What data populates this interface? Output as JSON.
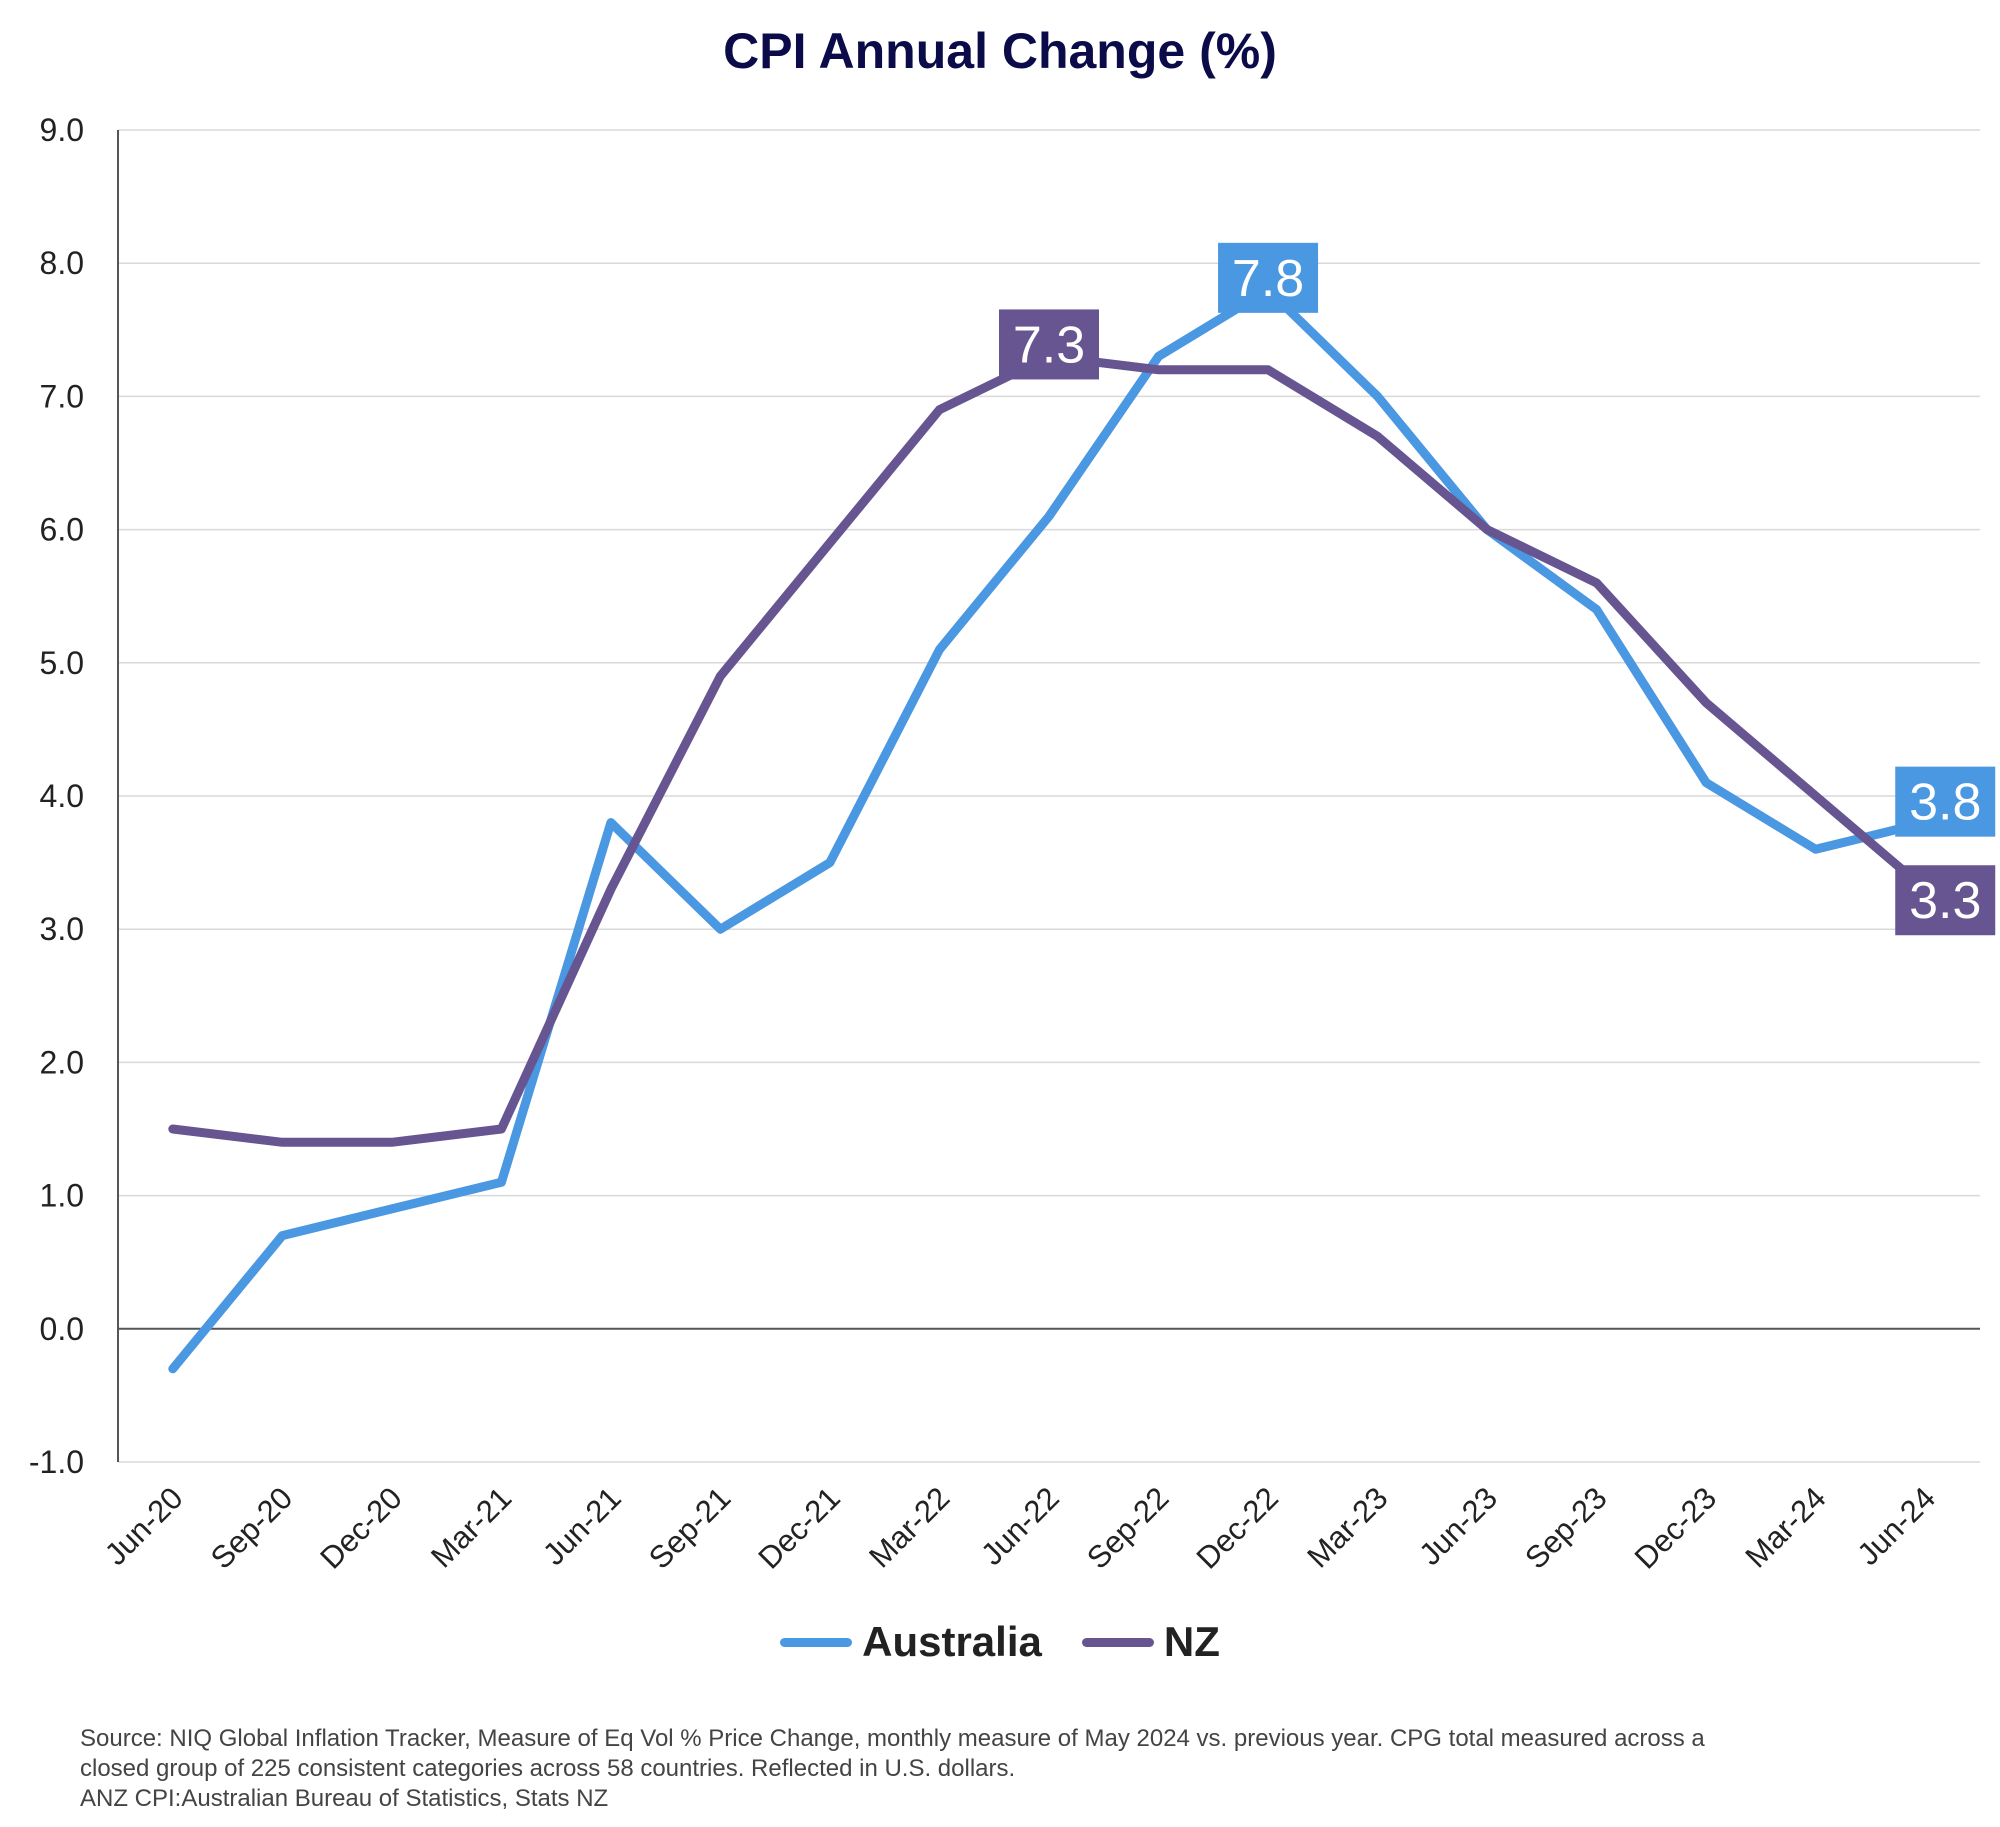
{
  "chart_data": {
    "type": "line",
    "title": "CPI Annual Change (%)",
    "xlabel": "",
    "ylabel": "",
    "categories": [
      "Jun-20",
      "Sep-20",
      "Dec-20",
      "Mar-21",
      "Jun-21",
      "Sep-21",
      "Dec-21",
      "Mar-22",
      "Jun-22",
      "Sep-22",
      "Dec-22",
      "Mar-23",
      "Jun-23",
      "Sep-23",
      "Dec-23",
      "Mar-24",
      "Jun-24"
    ],
    "ylim": [
      -1.0,
      9.0
    ],
    "yticks": [
      "9.0",
      "8.0",
      "7.0",
      "6.0",
      "5.0",
      "4.0",
      "3.0",
      "2.0",
      "1.0",
      "0.0",
      "-1.0"
    ],
    "grid": true,
    "legend_position": "bottom",
    "series": [
      {
        "name": "Australia",
        "color": "#4a97e2",
        "values": [
          -0.3,
          0.7,
          0.9,
          1.1,
          3.8,
          3.0,
          3.5,
          5.1,
          6.1,
          7.3,
          7.8,
          7.0,
          6.0,
          5.4,
          4.1,
          3.6,
          3.8
        ]
      },
      {
        "name": "NZ",
        "color": "#675591",
        "values": [
          1.5,
          1.4,
          1.4,
          1.5,
          3.3,
          4.9,
          5.9,
          6.9,
          7.3,
          7.2,
          7.2,
          6.7,
          6.0,
          5.6,
          4.7,
          4.0,
          3.3
        ]
      }
    ],
    "data_labels": [
      {
        "series": "NZ",
        "category": "Jun-22",
        "text": "7.3"
      },
      {
        "series": "Australia",
        "category": "Dec-22",
        "text": "7.8"
      },
      {
        "series": "Australia",
        "category": "Jun-24",
        "text": "3.8"
      },
      {
        "series": "NZ",
        "category": "Jun-24",
        "text": "3.3"
      }
    ]
  },
  "footnote": {
    "line1": "Source: NIQ Global Inflation Tracker, Measure of Eq Vol % Price Change, monthly measure of May 2024 vs. previous year. CPG total measured across a",
    "line2": "closed group of 225 consistent categories across 58 countries. Reflected in U.S. dollars.",
    "line3": "ANZ CPI:Australian Bureau of Statistics, Stats NZ"
  }
}
